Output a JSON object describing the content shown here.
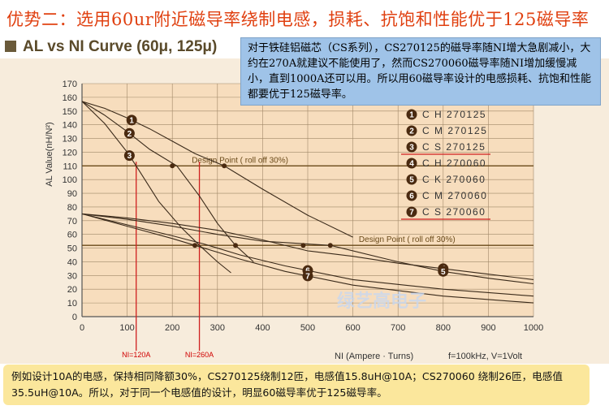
{
  "banner": {
    "title": "优势二：选用60ur附近磁导率绕制电感，损耗、抗饱和性能优于125磁导率"
  },
  "chart_header": {
    "title": "AL vs NI Curve (60μ, 125μ)"
  },
  "note": {
    "text": "对于铁硅铝磁芯（CS系列），CS270125的磁导率随NI增大急剧减小，大约在270A就建议不能使用了，然而CS270060磁导率随NI增加缓慢减小，直到1000A还可以用。所以用60磁导率设计的电感损耗、抗饱和性能都要优于125磁导率。"
  },
  "footer": {
    "text": "例如设计10A的电感，保持相同降额30%，CS270125绕制12匝，电感值15.8uH@10A；CS270060 绕制26匝，电感值35.5uH@10A。所以，对于同一个电感值的设计，明显60磁导率优于125磁导率。"
  },
  "watermark": {
    "text": "绿艺高电子"
  },
  "colors": {
    "plot_bg": "#f7ddbd",
    "grid": "#a08868",
    "curve": "#3a2a1a",
    "marker": "#4a2a10",
    "red": "#d02020",
    "design_line": "#6a4a1a",
    "banner_text": "#e04010",
    "note_bg": "#9fc3e8",
    "footer_bg": "#fbe79c"
  },
  "chart_data": {
    "type": "line",
    "title": "AL vs NI Curve (60μ, 125μ)",
    "xlabel": "NI (Ampere · Turns)",
    "ylabel": "AL Value(nH/N²)",
    "condition": "f=100kHz, V=1Volt",
    "xlim": [
      0,
      1000
    ],
    "ylim": [
      0,
      170
    ],
    "x_ticks": [
      0,
      100,
      200,
      300,
      400,
      500,
      600,
      700,
      800,
      900,
      1000
    ],
    "y_ticks": [
      0,
      10,
      20,
      30,
      40,
      50,
      60,
      70,
      80,
      90,
      100,
      110,
      120,
      130,
      140,
      150,
      160,
      170
    ],
    "design_points": [
      {
        "label": "Design Point ( roll off 30%)",
        "y": 110,
        "label_x": 350
      },
      {
        "label": "Design Point ( roll off 30%)",
        "y": 52,
        "label_x": 720
      }
    ],
    "reference_lines": [
      {
        "label": "NI=120A",
        "x": 120
      },
      {
        "label": "NI=260A",
        "x": 260
      }
    ],
    "series": [
      {
        "marker": "1",
        "name": "C H 270125",
        "points": [
          [
            0,
            157
          ],
          [
            50,
            152
          ],
          [
            100,
            145
          ],
          [
            150,
            137
          ],
          [
            200,
            128
          ],
          [
            250,
            119
          ],
          [
            315,
            110
          ],
          [
            400,
            93
          ],
          [
            500,
            74
          ],
          [
            600,
            58
          ]
        ]
      },
      {
        "marker": "2",
        "name": "C M 270125",
        "points": [
          [
            0,
            157
          ],
          [
            50,
            147
          ],
          [
            100,
            135
          ],
          [
            150,
            122
          ],
          [
            210,
            110
          ],
          [
            260,
            88
          ],
          [
            300,
            68
          ],
          [
            340,
            52
          ],
          [
            380,
            40
          ]
        ]
      },
      {
        "marker": "3",
        "name": "C S 270125",
        "points": [
          [
            0,
            157
          ],
          [
            50,
            141
          ],
          [
            100,
            120
          ],
          [
            120,
            110
          ],
          [
            170,
            84
          ],
          [
            220,
            65
          ],
          [
            260,
            52
          ],
          [
            300,
            40
          ],
          [
            330,
            32
          ]
        ]
      },
      {
        "marker": "4",
        "name": "C H 270060",
        "points": [
          [
            0,
            75
          ],
          [
            100,
            72
          ],
          [
            200,
            68
          ],
          [
            300,
            63
          ],
          [
            400,
            56
          ],
          [
            500,
            48
          ],
          [
            600,
            44
          ],
          [
            700,
            39
          ],
          [
            800,
            35
          ],
          [
            900,
            31
          ],
          [
            1000,
            27
          ]
        ]
      },
      {
        "marker": "5",
        "name": "C K 270060",
        "points": [
          [
            0,
            75
          ],
          [
            100,
            71
          ],
          [
            200,
            66
          ],
          [
            300,
            60
          ],
          [
            400,
            55
          ],
          [
            550,
            52
          ],
          [
            700,
            40
          ],
          [
            800,
            33
          ],
          [
            900,
            28
          ],
          [
            1000,
            24
          ]
        ]
      },
      {
        "marker": "6",
        "name": "C M 270060",
        "points": [
          [
            0,
            75
          ],
          [
            100,
            67
          ],
          [
            200,
            59
          ],
          [
            270,
            53
          ],
          [
            350,
            45
          ],
          [
            450,
            37
          ],
          [
            600,
            27
          ],
          [
            800,
            20
          ],
          [
            1000,
            15
          ]
        ]
      },
      {
        "marker": "7",
        "name": "C S 270060",
        "points": [
          [
            0,
            75
          ],
          [
            100,
            66
          ],
          [
            200,
            57
          ],
          [
            250,
            52
          ],
          [
            350,
            42
          ],
          [
            450,
            33
          ],
          [
            600,
            23
          ],
          [
            800,
            15
          ],
          [
            1000,
            10
          ]
        ]
      }
    ],
    "legend": [
      {
        "marker": "1",
        "label": "C H 270125"
      },
      {
        "marker": "2",
        "label": "C M 270125"
      },
      {
        "marker": "3",
        "label": "C S 270125"
      },
      {
        "marker": "4",
        "label": "C H 270060"
      },
      {
        "marker": "5",
        "label": "C K 270060"
      },
      {
        "marker": "6",
        "label": "C M 270060"
      },
      {
        "marker": "7",
        "label": "C S 270060"
      }
    ],
    "underlined_legend_markers": [
      "3",
      "7"
    ],
    "legend_placement": "top-right",
    "grid": true
  }
}
